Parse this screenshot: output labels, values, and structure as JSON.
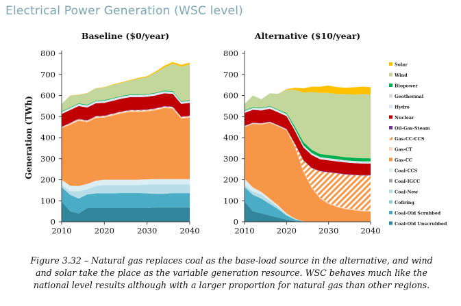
{
  "page_title": "Electrical Power Generation (WSC level)",
  "caption": {
    "line1": "Figure 3.32 – Natural gas replaces coal as the base-load source in the alternative, and wind",
    "line2": "and solar take the place as the variable generation resource. WSC behaves much like the",
    "line3": "national level results although with a larger proportion for natural gas than other regions."
  },
  "chart_data": [
    {
      "type": "area",
      "stacked": true,
      "title": "Baseline ($0/year)",
      "xlabel": "",
      "ylabel": "Generation (TWh)",
      "xlim": [
        2010,
        2040
      ],
      "ylim": [
        0,
        800
      ],
      "xticks": [
        2010,
        2020,
        2030,
        2040
      ],
      "yticks": [
        0,
        100,
        200,
        300,
        400,
        500,
        600,
        700,
        800
      ],
      "grid": false,
      "x": [
        2010,
        2012,
        2014,
        2016,
        2018,
        2020,
        2022,
        2024,
        2026,
        2028,
        2030,
        2032,
        2034,
        2036,
        2038,
        2040
      ],
      "series": [
        {
          "name": "Coal-Old Unscrubbed",
          "color": "#31859c",
          "values": [
            95,
            50,
            40,
            65,
            65,
            65,
            65,
            65,
            65,
            65,
            65,
            68,
            68,
            68,
            68,
            68
          ]
        },
        {
          "name": "Coal-Old Scrubbed",
          "color": "#4bacc6",
          "values": [
            70,
            78,
            70,
            65,
            70,
            70,
            70,
            72,
            72,
            72,
            70,
            65,
            65,
            68,
            68,
            68
          ]
        },
        {
          "name": "Cofiring",
          "color": "#92cddc",
          "values": [
            0,
            0,
            0,
            0,
            0,
            0,
            0,
            0,
            0,
            0,
            0,
            0,
            0,
            0,
            0,
            0
          ]
        },
        {
          "name": "Coal-New",
          "color": "#b7dee8",
          "values": [
            10,
            18,
            35,
            25,
            35,
            40,
            40,
            38,
            38,
            38,
            42,
            45,
            45,
            42,
            42,
            42
          ]
        },
        {
          "name": "Coal-IGCC",
          "color": "#a6a6a6",
          "values": [
            0,
            0,
            0,
            0,
            0,
            0,
            0,
            0,
            0,
            0,
            0,
            0,
            0,
            0,
            0,
            0
          ]
        },
        {
          "name": "Coal-CCS",
          "color": "#dbeef3",
          "values": [
            25,
            25,
            25,
            25,
            25,
            25,
            25,
            25,
            25,
            25,
            25,
            25,
            25,
            25,
            25,
            25
          ]
        },
        {
          "name": "Gas-CC",
          "color": "#f79646",
          "values": [
            245,
            290,
            310,
            293,
            298,
            295,
            305,
            315,
            322,
            322,
            322,
            327,
            337,
            335,
            287,
            292
          ]
        },
        {
          "name": "Gas-CT",
          "color": "#fcd5b4",
          "values": [
            5,
            5,
            5,
            5,
            5,
            5,
            5,
            5,
            5,
            5,
            5,
            5,
            5,
            5,
            5,
            5
          ]
        },
        {
          "name": "Gas-CC-CCS",
          "color": "#fac090",
          "values": [
            0,
            3,
            3,
            3,
            3,
            3,
            3,
            3,
            3,
            3,
            3,
            3,
            3,
            3,
            3,
            3
          ]
        },
        {
          "name": "Oil-Gas-Steam",
          "color": "#7030a0",
          "values": [
            2,
            2,
            2,
            2,
            2,
            2,
            2,
            2,
            2,
            2,
            2,
            2,
            2,
            2,
            2,
            2
          ]
        },
        {
          "name": "Nuclear",
          "color": "#c00000",
          "values": [
            60,
            60,
            60,
            60,
            60,
            60,
            60,
            60,
            60,
            60,
            60,
            60,
            60,
            60,
            60,
            60
          ]
        },
        {
          "name": "Hydro",
          "color": "#dce6f2",
          "values": [
            10,
            10,
            10,
            10,
            10,
            10,
            10,
            10,
            10,
            10,
            10,
            10,
            10,
            10,
            10,
            10
          ]
        },
        {
          "name": "Geothermal",
          "color": "#d9d9d9",
          "values": [
            0,
            0,
            0,
            0,
            0,
            0,
            0,
            0,
            0,
            0,
            0,
            0,
            0,
            0,
            0,
            0
          ]
        },
        {
          "name": "Biopower",
          "color": "#00b050",
          "values": [
            3,
            3,
            3,
            3,
            3,
            3,
            3,
            3,
            3,
            3,
            3,
            3,
            3,
            3,
            3,
            3
          ]
        },
        {
          "name": "Wind",
          "color": "#c3d69b",
          "values": [
            35,
            55,
            40,
            55,
            58,
            60,
            62,
            62,
            65,
            75,
            80,
            96,
            110,
            130,
            165,
            170
          ]
        },
        {
          "name": "Solar",
          "color": "#ffc000",
          "values": [
            0,
            1,
            1,
            1,
            1,
            2,
            3,
            3,
            3,
            4,
            5,
            5,
            8,
            8,
            8,
            8
          ]
        }
      ]
    },
    {
      "type": "area",
      "stacked": true,
      "title": "Alternative ($10/year)",
      "xlabel": "",
      "ylabel": "",
      "xlim": [
        2010,
        2040
      ],
      "ylim": [
        0,
        800
      ],
      "xticks": [
        2010,
        2020,
        2030,
        2040
      ],
      "yticks": [
        0,
        100,
        200,
        300,
        400,
        500,
        600,
        700,
        800
      ],
      "grid": false,
      "x": [
        2010,
        2012,
        2014,
        2016,
        2018,
        2020,
        2022,
        2024,
        2026,
        2028,
        2030,
        2032,
        2034,
        2036,
        2038,
        2040
      ],
      "series": [
        {
          "name": "Coal-Old Unscrubbed",
          "color": "#31859c",
          "values": [
            95,
            50,
            40,
            30,
            20,
            10,
            3,
            0,
            0,
            0,
            0,
            0,
            0,
            0,
            0,
            0
          ]
        },
        {
          "name": "Coal-Old Scrubbed",
          "color": "#4bacc6",
          "values": [
            70,
            78,
            70,
            55,
            40,
            20,
            8,
            2,
            0,
            0,
            0,
            0,
            0,
            0,
            0,
            0
          ]
        },
        {
          "name": "Cofiring",
          "color": "#92cddc",
          "values": [
            0,
            0,
            0,
            0,
            0,
            0,
            0,
            0,
            0,
            0,
            0,
            0,
            0,
            0,
            0,
            0
          ]
        },
        {
          "name": "Coal-New",
          "color": "#b7dee8",
          "values": [
            10,
            15,
            20,
            15,
            10,
            5,
            2,
            0,
            0,
            0,
            0,
            0,
            0,
            0,
            0,
            0
          ]
        },
        {
          "name": "Coal-IGCC",
          "color": "#a6a6a6",
          "values": [
            0,
            0,
            0,
            0,
            0,
            0,
            0,
            0,
            0,
            0,
            0,
            0,
            0,
            0,
            0,
            0
          ]
        },
        {
          "name": "Coal-CCS",
          "color": "#dbeef3",
          "values": [
            30,
            20,
            12,
            10,
            8,
            5,
            2,
            0,
            0,
            0,
            0,
            0,
            0,
            0,
            0,
            0
          ]
        },
        {
          "name": "Gas-CC",
          "color": "#f79646",
          "values": [
            245,
            302,
            320,
            360,
            375,
            395,
            340,
            235,
            160,
            110,
            85,
            70,
            60,
            55,
            50,
            48
          ]
        },
        {
          "name": "Gas-CT",
          "color": "#fcd5b4",
          "values": [
            5,
            5,
            5,
            5,
            5,
            5,
            5,
            5,
            5,
            5,
            5,
            5,
            5,
            5,
            5,
            5
          ]
        },
        {
          "name": "Gas-CC-CCS",
          "color": "#fac090",
          "values": [
            0,
            0,
            0,
            0,
            0,
            0,
            10,
            50,
            90,
            125,
            145,
            155,
            160,
            162,
            165,
            167
          ]
        },
        {
          "name": "Oil-Gas-Steam",
          "color": "#7030a0",
          "values": [
            2,
            2,
            2,
            2,
            2,
            2,
            2,
            2,
            2,
            2,
            2,
            2,
            2,
            2,
            2,
            2
          ]
        },
        {
          "name": "Nuclear",
          "color": "#c00000",
          "values": [
            60,
            60,
            60,
            60,
            60,
            60,
            60,
            60,
            60,
            55,
            55,
            55,
            55,
            55,
            55,
            55
          ]
        },
        {
          "name": "Hydro",
          "color": "#dce6f2",
          "values": [
            10,
            10,
            10,
            10,
            10,
            10,
            10,
            10,
            10,
            10,
            10,
            10,
            10,
            10,
            10,
            10
          ]
        },
        {
          "name": "Geothermal",
          "color": "#d9d9d9",
          "values": [
            0,
            0,
            0,
            0,
            0,
            0,
            0,
            0,
            0,
            0,
            0,
            0,
            0,
            0,
            0,
            0
          ]
        },
        {
          "name": "Biopower",
          "color": "#00b050",
          "values": [
            3,
            3,
            3,
            3,
            3,
            5,
            10,
            15,
            15,
            15,
            15,
            15,
            15,
            15,
            15,
            15
          ]
        },
        {
          "name": "Wind",
          "color": "#c3d69b",
          "values": [
            30,
            55,
            40,
            60,
            75,
            110,
            175,
            235,
            275,
            290,
            295,
            295,
            300,
            300,
            305,
            303
          ]
        },
        {
          "name": "Solar",
          "color": "#ffc000",
          "values": [
            0,
            0,
            0,
            0,
            0,
            3,
            10,
            20,
            25,
            30,
            35,
            33,
            30,
            35,
            35,
            35
          ]
        }
      ]
    }
  ],
  "legend_order": [
    "Solar",
    "Wind",
    "Biopower",
    "Geothermal",
    "Hydro",
    "Nuclear",
    "Oil-Gas-Steam",
    "Gas-CC-CCS",
    "Gas-CT",
    "Gas-CC",
    "Coal-CCS",
    "Coal-IGCC",
    "Coal-New",
    "Cofiring",
    "Coal-Old Scrubbed",
    "Coal-Old Unscrubbed"
  ],
  "legend_position": "right",
  "hatched_series": [
    "Gas-CC-CCS"
  ]
}
